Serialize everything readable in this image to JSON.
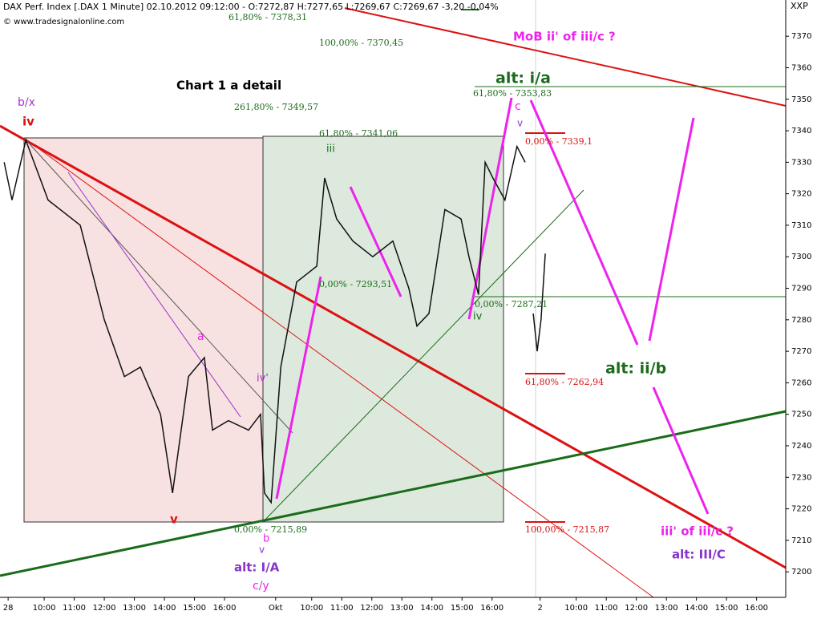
{
  "chart_data": {
    "type": "line",
    "title": "DAX Perf. Index [.DAX 1 Minute] 02.10.2012 09:12:00 - O:7272,87 H:7277,65 L:7269,67 C:7269,67 -3,20 -0,04%",
    "subtitle": "© www.tradesignalonline.com",
    "y_axis_label": "XXP",
    "x": [
      -0.13,
      0.13,
      0.59,
      1.33,
      2.4,
      3.2,
      3.87,
      4.4,
      5.07,
      5.47,
      6.0,
      6.53,
      6.8,
      7.33,
      8.0,
      8.4,
      8.53,
      8.75,
      9.07,
      9.6,
      10.27,
      10.53,
      10.93,
      11.47,
      12.13,
      12.8,
      13.33,
      13.6,
      14.0,
      14.53,
      15.07,
      15.33,
      15.65,
      15.87,
      16.13,
      16.53,
      16.93,
      17.2,
      17.3,
      17.47,
      17.6,
      17.73,
      17.87
    ],
    "series": [
      {
        "name": "DAX",
        "color": "#111111",
        "values": [
          7330,
          7318,
          7337,
          7318,
          7310,
          7280,
          7262,
          7265,
          7250,
          7225,
          7262,
          7268,
          7245,
          7248,
          7245,
          7250,
          7225,
          7222,
          7265,
          7292,
          7297,
          7325,
          7312,
          7305,
          7300,
          7305,
          7290,
          7278,
          7282,
          7315,
          7312,
          7300,
          7288,
          7330,
          7325,
          7318,
          7335,
          7330,
          null,
          7282,
          7270,
          7280,
          7301
        ]
      }
    ],
    "xlim": [
      -0.27,
      25.87
    ],
    "ylim": [
      7191.9,
      7381.5
    ],
    "xticks": [
      {
        "value": 0,
        "label": "28"
      },
      {
        "value": 1.2,
        "label": "10:00"
      },
      {
        "value": 2.2,
        "label": "11:00"
      },
      {
        "value": 3.2,
        "label": "12:00"
      },
      {
        "value": 4.2,
        "label": "13:00"
      },
      {
        "value": 5.2,
        "label": "14:00"
      },
      {
        "value": 6.2,
        "label": "15:00"
      },
      {
        "value": 7.2,
        "label": "16:00"
      },
      {
        "value": 8.9,
        "label": "Okt"
      },
      {
        "value": 10.1,
        "label": "10:00"
      },
      {
        "value": 11.1,
        "label": "11:00"
      },
      {
        "value": 12.1,
        "label": "12:00"
      },
      {
        "value": 13.1,
        "label": "13:00"
      },
      {
        "value": 14.1,
        "label": "14:00"
      },
      {
        "value": 15.1,
        "label": "15:00"
      },
      {
        "value": 16.1,
        "label": "16:00"
      },
      {
        "value": 17.7,
        "label": "2"
      },
      {
        "value": 18.9,
        "label": "10:00"
      },
      {
        "value": 19.9,
        "label": "11:00"
      },
      {
        "value": 20.9,
        "label": "12:00"
      },
      {
        "value": 21.9,
        "label": "13:00"
      },
      {
        "value": 22.9,
        "label": "14:00"
      },
      {
        "value": 23.9,
        "label": "15:00"
      },
      {
        "value": 24.9,
        "label": "16:00"
      }
    ],
    "yticks": [
      7200,
      7210,
      7220,
      7230,
      7240,
      7250,
      7260,
      7270,
      7280,
      7290,
      7300,
      7310,
      7320,
      7330,
      7340,
      7350,
      7360,
      7370
    ],
    "annotations": [
      "Chart 1 a detail",
      "MoB   ii' of iii/c ?",
      "alt: i/a",
      "alt: ii/b",
      "iii' of iii/c ?",
      "alt: III/C",
      "alt: I/A",
      "b/x",
      "iv",
      "v",
      "a",
      "iv'",
      "b",
      "v",
      "c/y",
      "iii",
      "iv",
      "c",
      "v",
      "61,80% - 7378,31",
      "100,00% - 7370,45",
      "261,80% - 7349,57",
      "61,80% - 7341,06",
      "0,00% - 7293,51",
      "0,00% - 7215,89",
      "61,80% - 7353,83",
      "0,00% - 7339,1",
      "0,00% - 7287,21",
      "61,80% - 7262,94",
      "100,00% - 7215,87"
    ]
  }
}
